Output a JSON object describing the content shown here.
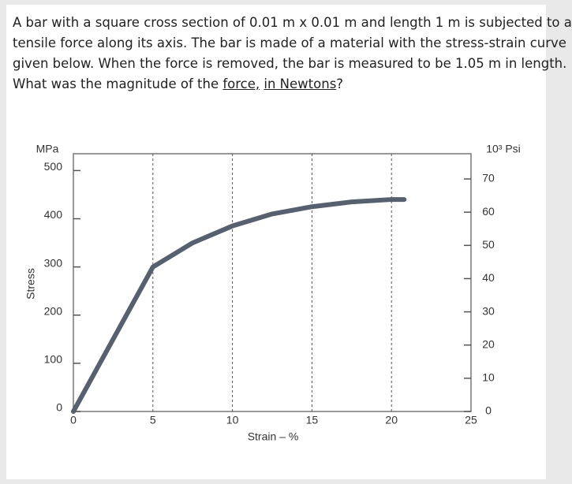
{
  "question": {
    "lines": [
      "A bar with a square cross section of 0.01 m x 0.01 m and length 1 m is subjected to a",
      "tensile force along its axis. The bar is made of a material with the stress-strain curve",
      "given below. When the force is removed, the bar is measured to be 1.05 m in length."
    ],
    "last_before": "What was the magnitude of the ",
    "last_underlined_1": "force,",
    "last_underlined_2": "in Newtons",
    "last_after": "?"
  },
  "chart_data": {
    "type": "line",
    "ylabel_top": "MPa",
    "y2label_top": "10³ Psi",
    "ylabel": "Stress",
    "xlabel": "Strain – %",
    "x": [
      0,
      5,
      7.5,
      10,
      12.5,
      15,
      17.5,
      20,
      20.8
    ],
    "series": [
      {
        "color": "#56606e",
        "values": [
          0,
          300,
          350,
          385,
          410,
          425,
          435,
          440,
          440
        ]
      }
    ],
    "xlim": [
      0,
      25
    ],
    "xticks": [
      0,
      5,
      10,
      15,
      20,
      25
    ],
    "ylim": [
      0,
      535
    ],
    "yticks": [
      0,
      100,
      200,
      300,
      400,
      500
    ],
    "y2lim": [
      0,
      77.6
    ],
    "y2ticks": [
      0,
      10,
      20,
      30,
      40,
      50,
      60,
      70
    ],
    "grid": "x"
  }
}
